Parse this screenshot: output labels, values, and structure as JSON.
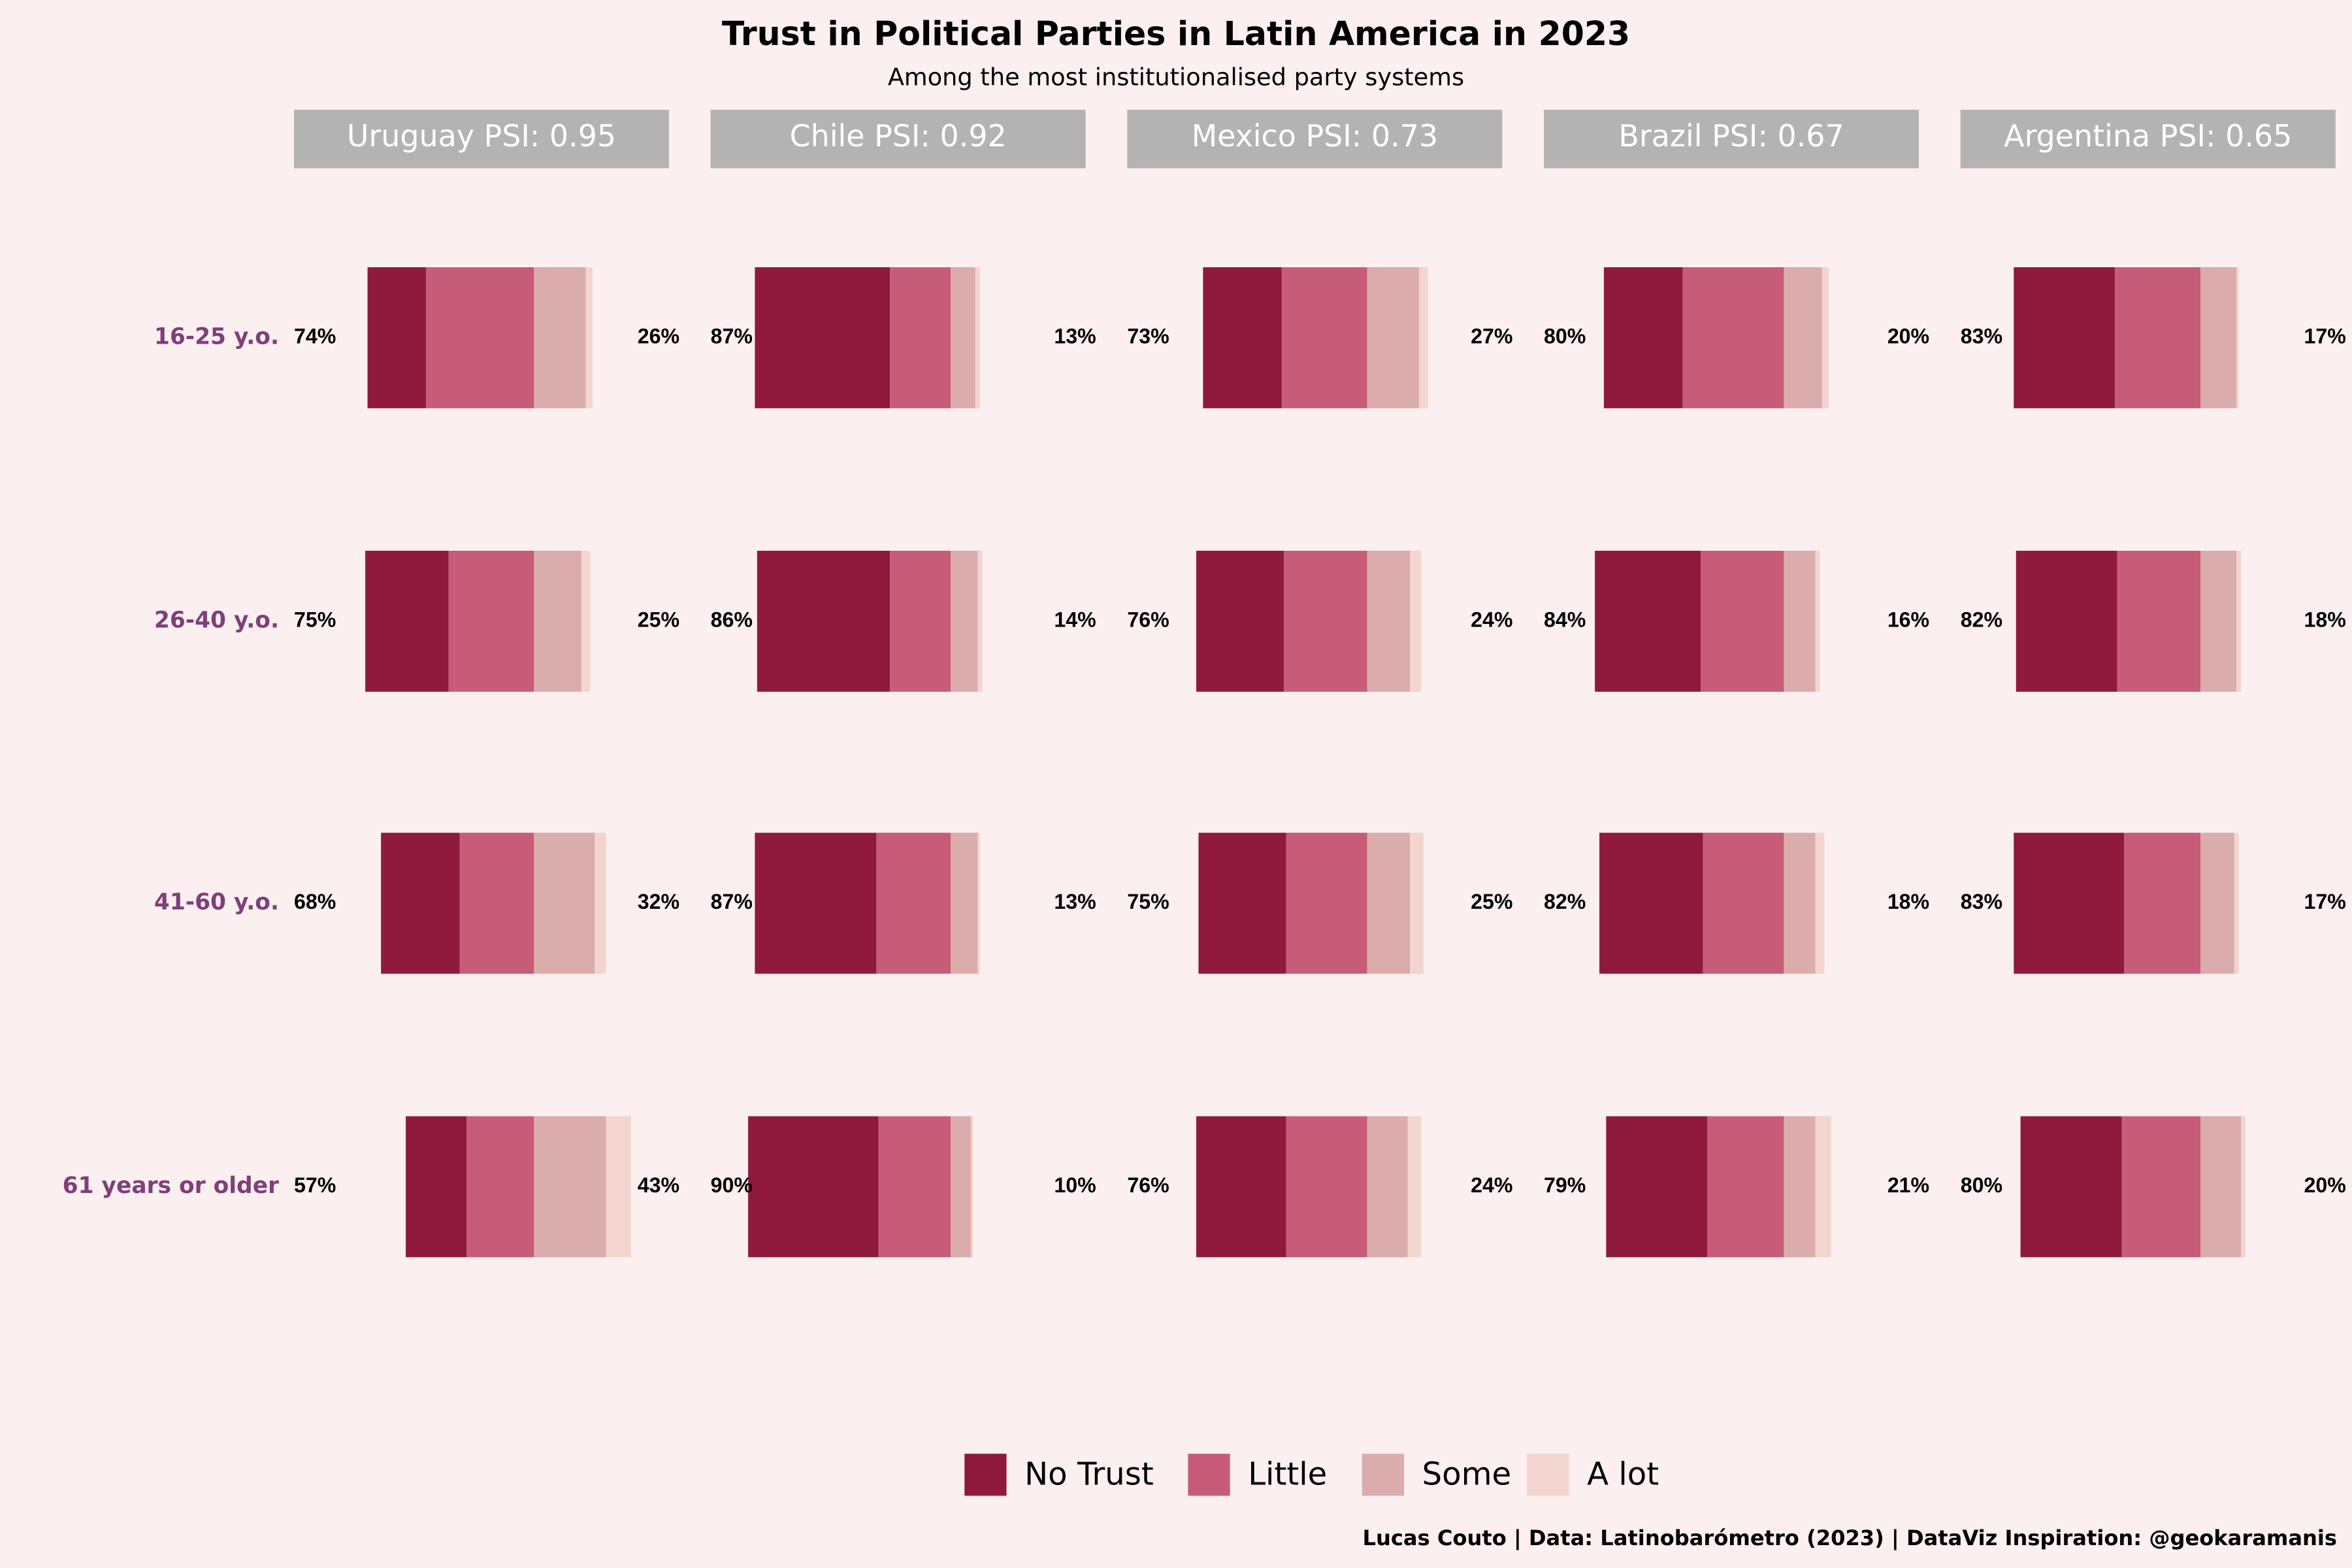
{
  "chart_data": {
    "type": "diverging_bar",
    "title": "Trust in Political Parties in Latin America in 2023",
    "subtitle": "Among the most institutionalised party systems",
    "caption": "Lucas Couto | Data: Latinobarómetro (2023) | DataViz Inspiration: @geokaramanis",
    "categories": [
      "16-25 y.o.",
      "26-40 y.o.",
      "41-60 y.o.",
      "61 years or older"
    ],
    "series": [
      {
        "name": "No Trust",
        "color": "#8f1a3e"
      },
      {
        "name": "Little",
        "color": "#c65c78"
      },
      {
        "name": "Some",
        "color": "#daacac"
      },
      {
        "name": "A lot",
        "color": "#f2d5ce"
      }
    ],
    "panels": [
      {
        "title": "Uruguay PSI: 0.95",
        "values": [
          [
            26,
            37,
            35,
            27
          ],
          [
            48,
            38,
            33,
            30
          ],
          [
            23,
            21,
            27,
            32
          ],
          [
            3,
            4,
            5,
            11
          ]
        ],
        "left_totals": [
          74,
          75,
          68,
          57
        ],
        "left_labels": [
          "74%",
          "75%",
          "68%",
          "57%"
        ],
        "right_totals": [
          26,
          25,
          32,
          43
        ],
        "right_labels": [
          "26%",
          "25%",
          "32%",
          "43%"
        ]
      },
      {
        "title": "Chile PSI: 0.92",
        "values": [
          [
            60,
            59,
            54,
            58
          ],
          [
            27,
            27,
            33,
            32
          ],
          [
            11,
            12,
            12,
            9
          ],
          [
            2,
            2,
            1,
            1
          ]
        ],
        "left_totals": [
          87,
          86,
          87,
          90
        ],
        "left_labels": [
          "87%",
          "86%",
          "87%",
          "90%"
        ],
        "right_totals": [
          13,
          14,
          13,
          10
        ],
        "right_labels": [
          "13%",
          "14%",
          "13%",
          "10%"
        ]
      },
      {
        "title": "Mexico PSI: 0.73",
        "values": [
          [
            35,
            39,
            39,
            40
          ],
          [
            38,
            37,
            36,
            36
          ],
          [
            23,
            19,
            19,
            18
          ],
          [
            4,
            5,
            6,
            6
          ]
        ],
        "left_totals": [
          73,
          76,
          75,
          76
        ],
        "left_labels": [
          "73%",
          "76%",
          "75%",
          "76%"
        ],
        "right_totals": [
          27,
          24,
          25,
          24
        ],
        "right_labels": [
          "27%",
          "24%",
          "25%",
          "24%"
        ]
      },
      {
        "title": "Brazil PSI: 0.67",
        "values": [
          [
            35,
            47,
            46,
            45
          ],
          [
            45,
            37,
            36,
            34
          ],
          [
            17,
            14,
            14,
            14
          ],
          [
            3,
            2,
            4,
            7
          ]
        ],
        "left_totals": [
          80,
          84,
          82,
          79
        ],
        "left_labels": [
          "80%",
          "84%",
          "82%",
          "79%"
        ],
        "right_totals": [
          20,
          16,
          18,
          21
        ],
        "right_labels": [
          "20%",
          "16%",
          "18%",
          "21%"
        ]
      },
      {
        "title": "Argentina PSI: 0.65",
        "values": [
          [
            45,
            45,
            49,
            45
          ],
          [
            38,
            37,
            34,
            35
          ],
          [
            16,
            16,
            15,
            18
          ],
          [
            1,
            2,
            2,
            2
          ]
        ],
        "left_totals": [
          83,
          82,
          83,
          80
        ],
        "left_labels": [
          "83%",
          "82%",
          "83%",
          "80%"
        ],
        "right_totals": [
          17,
          18,
          17,
          20
        ],
        "right_labels": [
          "17%",
          "18%",
          "17%",
          "20%"
        ]
      }
    ]
  }
}
